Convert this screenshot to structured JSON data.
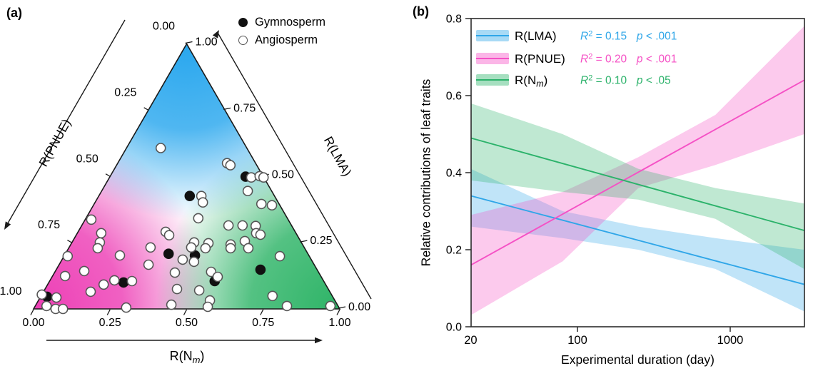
{
  "figure": {
    "panel_a": {
      "label": "(a)",
      "legend": {
        "items": [
          {
            "marker": "filled-circle",
            "label": "Gymnosperm"
          },
          {
            "marker": "open-circle",
            "label": "Angiosperm"
          }
        ]
      },
      "axes": {
        "left": {
          "title": "R(PNUE)",
          "ticks": [
            "0.00",
            "0.25",
            "0.50",
            "0.75",
            "1.00"
          ]
        },
        "right": {
          "title": "R(LMA)",
          "ticks": [
            "1.00",
            "0.75",
            "0.50",
            "0.25",
            "0.00"
          ]
        },
        "bottom": {
          "title_pre": "R(N",
          "title_sub": "m",
          "title_post": ")",
          "ticks": [
            "0.00",
            "0.25",
            "0.50",
            "0.75",
            "1.00"
          ]
        }
      },
      "colors": {
        "apex": "#29a7ee",
        "left_corner": "#ed3eb5",
        "right_corner": "#2eb467"
      }
    },
    "panel_b": {
      "label": "(b)",
      "y_axis": {
        "title": "Relative contributions of leaf traits",
        "ticks": [
          "0.8",
          "0.6",
          "0.4",
          "0.2",
          "0.0"
        ],
        "range": [
          0,
          0.8
        ]
      },
      "x_axis": {
        "title": "Experimental duration (day)",
        "ticks": [
          "20",
          "100",
          "1000"
        ],
        "range": [
          20,
          3050
        ],
        "scale": "log"
      }
    }
  },
  "chart_data": [
    {
      "type": "scatter",
      "subtype": "ternary",
      "axis_titles": {
        "left": "R(PNUE)",
        "right": "R(LMA)",
        "bottom": "R(Nm)"
      },
      "axis_range": [
        0,
        1
      ],
      "point_format": [
        "lma",
        "nm"
      ],
      "note": "pnue = 1 - lma - nm",
      "series": [
        {
          "name": "Gymnosperm",
          "marker": "filled",
          "points": [
            [
              0.426,
              0.297
            ],
            [
              0.499,
              0.443
            ],
            [
              0.208,
              0.337
            ],
            [
              0.202,
              0.426
            ],
            [
              0.148,
              0.667
            ],
            [
              0.105,
              0.539
            ],
            [
              0.1,
              0.244
            ],
            [
              0.046,
              0.021
            ]
          ]
        },
        {
          "name": "Angiosperm",
          "marker": "open",
          "points": [
            [
              0.607,
              0.112
            ],
            [
              0.426,
              0.335
            ],
            [
              0.402,
              0.352
            ],
            [
              0.55,
              0.357
            ],
            [
              0.542,
              0.372
            ],
            [
              0.496,
              0.463
            ],
            [
              0.501,
              0.488
            ],
            [
              0.496,
              0.503
            ],
            [
              0.445,
              0.477
            ],
            [
              0.396,
              0.546
            ],
            [
              0.391,
              0.583
            ],
            [
              0.342,
              0.367
            ],
            [
              0.315,
              0.479
            ],
            [
              0.315,
              0.525
            ],
            [
              0.313,
              0.569
            ],
            [
              0.291,
              0.286
            ],
            [
              0.278,
              0.304
            ],
            [
              0.286,
              0.584
            ],
            [
              0.28,
              0.601
            ],
            [
              0.251,
              0.399
            ],
            [
              0.248,
              0.447
            ],
            [
              0.243,
              0.522
            ],
            [
              0.256,
              0.562
            ],
            [
              0.337,
              0.02
            ],
            [
              0.286,
              0.078
            ],
            [
              0.251,
              0.091
            ],
            [
              0.232,
              0.266
            ],
            [
              0.229,
              0.095
            ],
            [
              0.199,
              0.012
            ],
            [
              0.202,
              0.181
            ],
            [
              0.167,
              0.292
            ],
            [
              0.143,
              0.094
            ],
            [
              0.124,
              0.041
            ],
            [
              0.137,
              0.393
            ],
            [
              0.092,
              0.183
            ],
            [
              0.108,
              0.21
            ],
            [
              0.105,
              0.269
            ],
            [
              0.075,
              0.431
            ],
            [
              0.065,
              0.154
            ],
            [
              0.043,
              0.053
            ],
            [
              0.011,
              0.037
            ],
            [
              0.0,
              0.072
            ],
            [
              0.0,
              0.096
            ],
            [
              0.005,
              0.3
            ],
            [
              0.016,
              0.442
            ],
            [
              0.186,
              0.394
            ],
            [
              0.054,
              0.0
            ],
            [
              0.232,
              0.399
            ],
            [
              0.229,
              0.447
            ],
            [
              0.229,
              0.529
            ],
            [
              0.229,
              0.587
            ],
            [
              0.178,
              0.435
            ],
            [
              0.199,
              0.705
            ],
            [
              0.14,
              0.51
            ],
            [
              0.121,
              0.541
            ],
            [
              0.07,
              0.506
            ],
            [
              0.032,
              0.56
            ],
            [
              0.049,
              0.756
            ],
            [
              0.008,
              0.565
            ],
            [
              0.011,
              0.822
            ],
            [
              0.011,
              0.964
            ]
          ]
        }
      ]
    },
    {
      "type": "line",
      "subtype": "regression-with-ci",
      "x_scale": "log",
      "x_range": [
        20,
        3050
      ],
      "y_range": [
        0,
        0.8
      ],
      "grid": false,
      "legend_position": "top-left",
      "series": [
        {
          "name_pre": "R(LMA)",
          "name_sub": "",
          "name_post": "",
          "color": "#2fa6e8",
          "r2": "R² = 0.15",
          "p": "p < .001",
          "line_x": [
            20,
            3050
          ],
          "line_y": [
            0.34,
            0.11
          ],
          "band_x": [
            20,
            80,
            250,
            800,
            3050
          ],
          "band_upper": [
            0.41,
            0.3,
            0.26,
            0.23,
            0.2
          ],
          "band_lower": [
            0.26,
            0.23,
            0.2,
            0.15,
            0.04
          ]
        },
        {
          "name_pre": "R(PNUE)",
          "name_sub": "",
          "name_post": "",
          "color": "#f551c5",
          "r2": "R² = 0.20",
          "p": "p < .001",
          "line_x": [
            20,
            3050
          ],
          "line_y": [
            0.16,
            0.64
          ],
          "band_x": [
            20,
            80,
            250,
            800,
            3050
          ],
          "band_upper": [
            0.29,
            0.35,
            0.44,
            0.55,
            0.78
          ],
          "band_lower": [
            0.03,
            0.17,
            0.36,
            0.42,
            0.5
          ]
        },
        {
          "name_pre": "R(N",
          "name_sub": "m",
          "name_post": ")",
          "color": "#2bb26a",
          "r2": "R² = 0.10",
          "p": "p < .05",
          "line_x": [
            20,
            3050
          ],
          "line_y": [
            0.49,
            0.25
          ],
          "band_x": [
            20,
            80,
            250,
            800,
            3050
          ],
          "band_upper": [
            0.58,
            0.5,
            0.41,
            0.36,
            0.32
          ],
          "band_lower": [
            0.38,
            0.35,
            0.33,
            0.28,
            0.15
          ]
        }
      ]
    }
  ]
}
